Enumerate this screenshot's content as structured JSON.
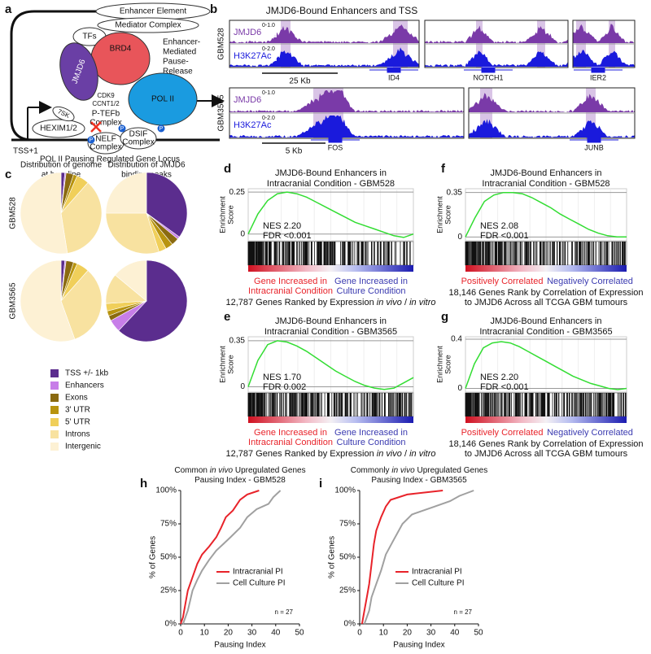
{
  "diagram_a": {
    "label": "a",
    "enhancer": "Enhancer Element",
    "mediator": "Mediator Complex",
    "tfs": "TFs",
    "jmjd6": "JMJD6",
    "brd4": "BRD4",
    "pause_release": [
      "Enhancer-",
      "Mediated",
      "Pause-",
      "Release"
    ],
    "cdk9": [
      "CDK9",
      "CCNT1/2"
    ],
    "ptefb": [
      "P-TEFb",
      "Complex"
    ],
    "sevensk": "7SK",
    "hexim": "HEXIM1/2",
    "pol2": "POL II",
    "nelf": [
      "NELF",
      "Complex"
    ],
    "dsif": [
      "DSIF",
      "Complex"
    ],
    "tss": "TSS+1",
    "locus": "POL II Pausing Regulated Gene Locus",
    "p": "P"
  },
  "tracks_b": {
    "label": "b",
    "title": "JMJD6-Bound Enhancers and TSS",
    "rows": [
      {
        "name": "GBM528",
        "tracks": [
          "JMJD6",
          "H3K27Ac"
        ],
        "ranges": [
          "0-1.0",
          "0-2.0"
        ],
        "scale": "25 Kb",
        "genes": [
          "ID4",
          "NOTCH1",
          "IER2"
        ]
      },
      {
        "name": "GBM3565",
        "tracks": [
          "JMJD6",
          "H3K27Ac"
        ],
        "ranges": [
          "0-1.0",
          "0-2.0"
        ],
        "scale": "5 Kb",
        "genes": [
          "FOS",
          "JUNB"
        ]
      }
    ]
  },
  "chart_data": [
    {
      "type": "pie",
      "label": "c",
      "columns": [
        [
          "Distribution of genome",
          "at baseline"
        ],
        [
          "Distribution of JMJD6",
          "binding peaks"
        ]
      ],
      "rows": [
        "GBM528",
        "GBM3565"
      ],
      "categories": [
        "TSS +/- 1kb",
        "Enhancers",
        "Exons",
        "3' UTR",
        "5' UTR",
        "Introns",
        "Intergenic"
      ],
      "colors": [
        "#5b2d8e",
        "#c77ee8",
        "#8a6a10",
        "#b8940f",
        "#f0cf5a",
        "#f8e2a0",
        "#fdf1d4"
      ],
      "pies": [
        [
          1.5,
          0.5,
          3,
          1.5,
          5,
          36,
          52.5
        ],
        [
          35,
          1,
          3,
          3,
          3,
          30,
          25
        ],
        [
          1.5,
          0.5,
          3,
          1.5,
          5,
          33,
          55.5
        ],
        [
          62,
          5,
          2,
          2,
          3,
          12,
          14
        ]
      ]
    },
    {
      "type": "gsea",
      "label": "d",
      "title": [
        "JMJD6-Bound Enhancers in",
        "Intracranial Condition - GBM528"
      ],
      "y_label": [
        "Enrichment",
        "Score"
      ],
      "ylim": [
        -0.04,
        0.27
      ],
      "yticks": [
        0,
        0.25
      ],
      "values": [
        0,
        0.12,
        0.2,
        0.24,
        0.25,
        0.24,
        0.22,
        0.19,
        0.16,
        0.13,
        0.1,
        0.07,
        0.05,
        0.03,
        0.01,
        -0.01,
        -0.02,
        0
      ],
      "color": "#33dd33",
      "nes": "NES 2.20",
      "fdr": "FDR <0.001",
      "left_label": [
        "Gene Increased in",
        "Intracranial Condition"
      ],
      "right_label": [
        "Gene Increased in",
        "Culture Condition"
      ],
      "left_color": "#e8232a",
      "right_color": "#3a3ab0",
      "footnote": [
        [
          "12,787 Genes Ranked by Expression ",
          "in vivo",
          " / ",
          "in vitro"
        ]
      ]
    },
    {
      "type": "gsea",
      "label": "e",
      "title": [
        "JMJD6-Bound Enhancers in",
        "Intracranial Condition - GBM3565"
      ],
      "y_label": [
        "Enrichment",
        "Score"
      ],
      "ylim": [
        -0.04,
        0.38
      ],
      "yticks": [
        0,
        0.35
      ],
      "values": [
        0,
        0.2,
        0.32,
        0.35,
        0.34,
        0.31,
        0.27,
        0.22,
        0.17,
        0.12,
        0.08,
        0.04,
        0.01,
        -0.01,
        -0.02,
        -0.01,
        0.03,
        0.07
      ],
      "color": "#33dd33",
      "nes": "NES 1.70",
      "fdr": "FDR 0.002",
      "left_label": [
        "Gene Increased in",
        "Intracranial Condition"
      ],
      "right_label": [
        "Gene Increased in",
        "Culture Condition"
      ],
      "left_color": "#e8232a",
      "right_color": "#3a3ab0",
      "footnote": [
        [
          "12,787 Genes Ranked by Expression ",
          "in vivo",
          " / ",
          "in vitro"
        ]
      ]
    },
    {
      "type": "gsea",
      "label": "f",
      "title": [
        "JMJD6-Bound Enhancers in",
        "Intracranial Condition - GBM528"
      ],
      "y_label": [
        "Enrichment",
        "Score"
      ],
      "ylim": [
        -0.03,
        0.38
      ],
      "yticks": [
        0,
        0.35
      ],
      "values": [
        0,
        0.15,
        0.28,
        0.33,
        0.35,
        0.35,
        0.34,
        0.31,
        0.27,
        0.23,
        0.18,
        0.14,
        0.1,
        0.06,
        0.03,
        0.01,
        0,
        0
      ],
      "color": "#33dd33",
      "nes": "NES 2.08",
      "fdr": "FDR <0.001",
      "left_label": [
        "Positively Correlated"
      ],
      "right_label": [
        "Negatively Correlated"
      ],
      "left_color": "#e8232a",
      "right_color": "#3a3ab0",
      "footnote": [
        [
          "18,146 Genes Rank by Correlation of Expression"
        ],
        [
          "to JMJD6 Across all TCGA GBM tumours"
        ]
      ]
    },
    {
      "type": "gsea",
      "label": "g",
      "title": [
        "JMJD6-Bound Enhancers in",
        "Intracranial Condition - GBM3565"
      ],
      "y_label": [
        "Enrichment",
        "Score"
      ],
      "ylim": [
        -0.03,
        0.42
      ],
      "yticks": [
        0,
        0.4
      ],
      "values": [
        0,
        0.2,
        0.33,
        0.37,
        0.38,
        0.37,
        0.34,
        0.3,
        0.26,
        0.22,
        0.18,
        0.14,
        0.1,
        0.07,
        0.04,
        0.02,
        0,
        -0.01,
        0
      ],
      "color": "#33dd33",
      "nes": "NES 2.20",
      "fdr": "FDR <0.001",
      "left_label": [
        "Positively Correlated"
      ],
      "right_label": [
        "Negatively Correlated"
      ],
      "left_color": "#e8232a",
      "right_color": "#3a3ab0",
      "footnote": [
        [
          "18,146 Genes Rank by Correlation of Expression"
        ],
        [
          "to JMJD6 Across all TCGA GBM tumours"
        ]
      ]
    },
    {
      "type": "step",
      "label": "h",
      "title": [
        [
          "Common ",
          "in vivo",
          " Upregulated Genes"
        ],
        [
          "Pausing Index - GBM528"
        ]
      ],
      "x_label": "Pausing Index",
      "y_label": "% of Genes",
      "xlim": [
        0,
        50
      ],
      "xticks": [
        0,
        10,
        20,
        30,
        40,
        50
      ],
      "ylim": [
        0,
        100
      ],
      "yticks": [
        {
          "value": 0,
          "label": "0%"
        },
        {
          "value": 25,
          "label": "25%"
        },
        {
          "value": 50,
          "label": "50%"
        },
        {
          "value": 75,
          "label": "75%"
        },
        {
          "value": 100,
          "label": "100%"
        }
      ],
      "annotation": "n = 27",
      "series": [
        {
          "name": "Intracranial PI",
          "color": "#e8232a",
          "x": [
            0,
            1,
            2,
            3,
            5,
            7,
            9,
            12,
            15,
            17,
            19,
            22,
            25,
            28,
            33
          ],
          "values": [
            0,
            5,
            15,
            25,
            35,
            45,
            52,
            58,
            65,
            72,
            80,
            85,
            93,
            97,
            100
          ]
        },
        {
          "name": "Cell Culture PI",
          "color": "#a0a0a0",
          "x": [
            1,
            3,
            5,
            7,
            9,
            12,
            15,
            18,
            21,
            25,
            28,
            32,
            37,
            39,
            42
          ],
          "values": [
            0,
            10,
            25,
            33,
            40,
            48,
            55,
            60,
            65,
            72,
            80,
            86,
            90,
            95,
            100
          ]
        }
      ]
    },
    {
      "type": "step",
      "label": "i",
      "title": [
        [
          "Commonly ",
          "in vivo",
          " Upregulated Genes"
        ],
        [
          "Pausing Index - GBM3565"
        ]
      ],
      "x_label": "Pausing Index",
      "y_label": "% of Genes",
      "xlim": [
        0,
        50
      ],
      "xticks": [
        0,
        10,
        20,
        30,
        40,
        50
      ],
      "ylim": [
        0,
        100
      ],
      "yticks": [
        {
          "value": 0,
          "label": "0%"
        },
        {
          "value": 25,
          "label": "25%"
        },
        {
          "value": 50,
          "label": "50%"
        },
        {
          "value": 75,
          "label": "75%"
        },
        {
          "value": 100,
          "label": "100%"
        }
      ],
      "annotation": "n = 27",
      "series": [
        {
          "name": "Intracranial PI",
          "color": "#e8232a",
          "x": [
            1,
            2,
            3,
            4,
            5,
            6,
            7,
            9,
            11,
            13,
            20,
            35
          ],
          "values": [
            0,
            10,
            20,
            30,
            45,
            60,
            70,
            80,
            88,
            93,
            97,
            100
          ]
        },
        {
          "name": "Cell Culture PI",
          "color": "#a0a0a0",
          "x": [
            2,
            4,
            5,
            7,
            9,
            11,
            14,
            18,
            22,
            30,
            38,
            42,
            48
          ],
          "values": [
            0,
            10,
            20,
            30,
            40,
            52,
            62,
            75,
            82,
            87,
            92,
            96,
            100
          ]
        }
      ]
    }
  ]
}
